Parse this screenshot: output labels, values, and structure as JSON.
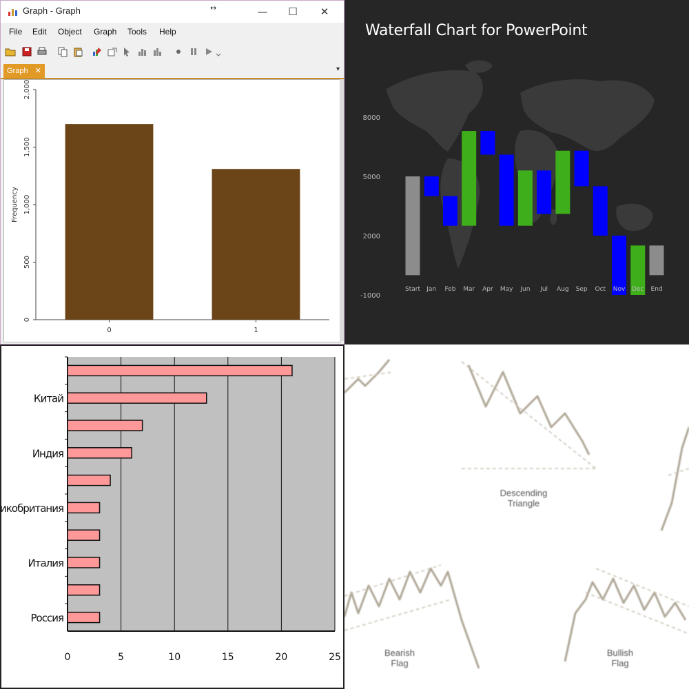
{
  "window": {
    "title": "Graph - Graph",
    "drag_glyph": "↔",
    "controls": {
      "minimize": "—",
      "maximize": "☐",
      "close": "✕"
    },
    "menu": [
      "File",
      "Edit",
      "Object",
      "Graph",
      "Tools",
      "Help"
    ],
    "toolbar_icons": [
      "open-icon",
      "save-icon",
      "print-icon",
      "copy-icon",
      "paste-icon",
      "edit-icon",
      "export-icon",
      "pointer-icon",
      "chart-icon",
      "chart2-icon",
      "record-icon",
      "pause-icon",
      "play-icon"
    ],
    "tab_label": "Graph",
    "tab_close": "✕",
    "tab_scroll": "▾",
    "accent_color": "#e29a26"
  },
  "q2_title": "Waterfall Chart for PowerPoint",
  "q4_labels": {
    "descending": [
      "Descending",
      "Triangle"
    ],
    "bearish": [
      "Bearish",
      "Flag"
    ],
    "bullish": [
      "Bullish",
      "Flag"
    ]
  },
  "chart_data": [
    {
      "type": "bar",
      "categories": [
        "0",
        "1"
      ],
      "values": [
        1700,
        1310
      ],
      "ylabel": "Frequency",
      "ylim": [
        0,
        2000
      ],
      "yticks": [
        "0",
        "500",
        "1,000",
        "1,500",
        "2,000"
      ],
      "bar_color": "#6b4418",
      "grid": false
    },
    {
      "type": "bar",
      "title": "Waterfall Chart for PowerPoint",
      "categories": [
        "Start",
        "Jan",
        "Feb",
        "Mar",
        "Apr",
        "May",
        "Jun",
        "Jul",
        "Aug",
        "Sep",
        "Oct",
        "Nov",
        "Dec",
        "End"
      ],
      "ylim": [
        -1000,
        9500
      ],
      "yticks": [
        "-1000",
        "2000",
        "5000",
        "8000"
      ],
      "ytick_values": [
        -1000,
        2000,
        5000,
        8000
      ],
      "bars": [
        {
          "from": 0,
          "to": 5000,
          "kind": "total"
        },
        {
          "from": 5000,
          "to": 4000,
          "kind": "decrease"
        },
        {
          "from": 4000,
          "to": 2500,
          "kind": "decrease"
        },
        {
          "from": 2500,
          "to": 7300,
          "kind": "increase"
        },
        {
          "from": 7300,
          "to": 6100,
          "kind": "decrease"
        },
        {
          "from": 6100,
          "to": 2500,
          "kind": "decrease"
        },
        {
          "from": 2500,
          "to": 5300,
          "kind": "increase"
        },
        {
          "from": 5300,
          "to": 3100,
          "kind": "decrease"
        },
        {
          "from": 3100,
          "to": 6300,
          "kind": "increase"
        },
        {
          "from": 6300,
          "to": 4500,
          "kind": "decrease"
        },
        {
          "from": 4500,
          "to": 2000,
          "kind": "decrease"
        },
        {
          "from": 2000,
          "to": -1000,
          "kind": "decrease"
        },
        {
          "from": -1000,
          "to": 1500,
          "kind": "increase"
        },
        {
          "from": 0,
          "to": 1500,
          "kind": "total"
        }
      ],
      "colors": {
        "total": "#8c8c8c",
        "increase": "#3fae1b",
        "decrease": "#0000ff"
      }
    },
    {
      "type": "bar",
      "orientation": "horizontal",
      "categories": [
        "",
        "Китай",
        "",
        "Индия",
        "",
        "Великобритания",
        "",
        "Италия",
        "",
        "Россия"
      ],
      "values": [
        21,
        13,
        7,
        6,
        4,
        3,
        3,
        3,
        3,
        3
      ],
      "xlim": [
        0,
        25
      ],
      "xticks": [
        "0",
        "5",
        "10",
        "15",
        "20",
        "25"
      ],
      "xtick_values": [
        0,
        5,
        10,
        15,
        20,
        25
      ],
      "bar_color": "#ff9999",
      "grid": true
    }
  ]
}
